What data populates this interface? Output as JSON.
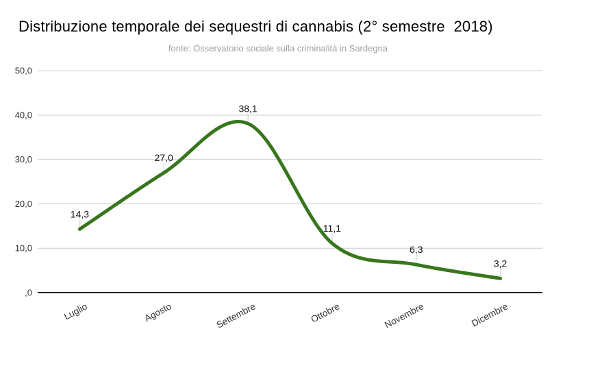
{
  "chart_data": {
    "type": "line",
    "title": "Distribuzione temporale dei sequestri di cannabis (2° semestre  2018)",
    "subtitle": "fonte: Osservatorio sociale sulla criminalità in Sardegna",
    "categories": [
      "Luglio",
      "Agosto",
      "Settembre",
      "Ottobre",
      "Novembre",
      "Dicembre"
    ],
    "values": [
      14.3,
      27.0,
      38.1,
      11.1,
      6.3,
      3.2
    ],
    "value_labels": [
      "14,3",
      "27,0",
      "38,1",
      "11,1",
      "6,3",
      "3,2"
    ],
    "xlabel": "",
    "ylabel": "",
    "ylim": [
      0,
      50
    ],
    "y_ticks": [
      {
        "value": 0,
        "label": ",0"
      },
      {
        "value": 10,
        "label": "10,0"
      },
      {
        "value": 20,
        "label": "20,0"
      },
      {
        "value": 30,
        "label": "30,0"
      },
      {
        "value": 40,
        "label": "40,0"
      },
      {
        "value": 50,
        "label": "50,0"
      }
    ],
    "grid": true,
    "legend": "none",
    "curve": "smooth",
    "x_label_rotation": -28,
    "colors": {
      "line": "#38761d",
      "grid": "#cccccc",
      "axis_line": "#212121",
      "tick_label": "#333333",
      "data_label": "#111111",
      "callout": "#dcdcdc",
      "title": "#000000",
      "subtitle": "#9e9e9e",
      "background": "#ffffff"
    }
  }
}
